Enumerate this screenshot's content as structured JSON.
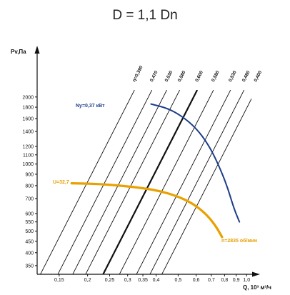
{
  "chart_data": {
    "type": "line",
    "title": "D = 1,1 Dn",
    "xlabel": "Q, 10³ м³/ч",
    "ylabel": "Pv,Па",
    "x_scale": "log",
    "y_scale": "log",
    "xlim": [
      0.12,
      1.05
    ],
    "ylim": [
      320,
      2150
    ],
    "x_ticks": [
      0.15,
      0.2,
      0.25,
      0.3,
      0.35,
      0.4,
      0.5,
      0.6,
      0.7,
      0.8,
      0.9,
      1.0
    ],
    "x_tick_labels": [
      "0,15",
      "0,2",
      "0,25",
      "0,3",
      "0,35",
      "0,4",
      "0,5",
      "0,6",
      "0,7",
      "0,8",
      "0,9",
      "1,0"
    ],
    "y_ticks": [
      350,
      400,
      450,
      500,
      550,
      600,
      700,
      800,
      900,
      1000,
      1100,
      1200,
      1400,
      1600,
      1800,
      2000
    ],
    "y_tick_labels": [
      "350",
      "400",
      "450",
      "500",
      "550",
      "600",
      "700",
      "800",
      "900",
      "1000",
      "1100",
      "1200",
      "1400",
      "1600",
      "1800",
      "2000"
    ],
    "efficiency_lines": [
      {
        "label": "η=0,390",
        "q_at_2000": 0.31,
        "bold": false
      },
      {
        "label": "0,470",
        "q_at_2000": 0.37,
        "bold": false
      },
      {
        "label": "0,530",
        "q_at_2000": 0.43,
        "bold": false
      },
      {
        "label": "0,580",
        "q_at_2000": 0.49,
        "bold": false
      },
      {
        "label": "0,600",
        "q_at_2000": 0.585,
        "bold": true
      },
      {
        "label": "0,580",
        "q_at_2000": 0.69,
        "bold": false
      },
      {
        "label": "0,530",
        "q_at_2000": 0.82,
        "bold": false
      },
      {
        "label": "0,480",
        "q_at_2000": 0.94,
        "bold": false
      },
      {
        "label": "0,400",
        "q_at_2000": 1.06,
        "bold": false
      }
    ],
    "series": [
      {
        "name": "Ny=0,37 кВт",
        "color": "#1d3e8a",
        "x": [
          0.38,
          0.45,
          0.52,
          0.6,
          0.68,
          0.75,
          0.82,
          0.88,
          0.93
        ],
        "y": [
          1860,
          1780,
          1640,
          1450,
          1220,
          1000,
          800,
          630,
          550
        ]
      },
      {
        "name": "U=32,7",
        "color": "#e8a100",
        "x": [
          0.17,
          0.22,
          0.28,
          0.35,
          0.42,
          0.5,
          0.58,
          0.66,
          0.73,
          0.78
        ],
        "y": [
          820,
          815,
          800,
          780,
          755,
          715,
          665,
          600,
          530,
          470
        ]
      }
    ],
    "annotations": {
      "power": "Ny=0,37 кВт",
      "tip_speed": "U=32,7",
      "rpm": "n=2835 об/мин"
    }
  }
}
